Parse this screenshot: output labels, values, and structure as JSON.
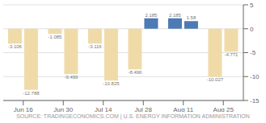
{
  "chart_data": {
    "type": "bar",
    "categories": [
      "Jun 16",
      "Jun 30",
      "Jul 14",
      "Jul 28",
      "Aug 11",
      "Aug 25"
    ],
    "series": [
      {
        "values": [
          -3.106,
          -1.085,
          -3.116,
          -8.496,
          2.185,
          -10.027
        ],
        "colors": [
          "#f0dba8",
          "#f0dba8",
          "#f0dba8",
          "#f0dba8",
          "#4d7ab5",
          "#f0dba8"
        ]
      },
      {
        "values": [
          -12.788,
          -9.499,
          -10.825,
          2.185,
          1.58,
          -4.771
        ],
        "colors": [
          "#f0dba8",
          "#f0dba8",
          "#f0dba8",
          "#4d7ab5",
          "#4d7ab5",
          "#f0dba8"
        ]
      }
    ],
    "ylim": [
      -15,
      5
    ],
    "yticks": [
      5,
      0,
      -5,
      -10,
      -15
    ],
    "grid": true,
    "data_labels": true,
    "annotations": [
      "SOURCE: TRADINGECONOMICS.COM | U.S. ENERGY INFORMATION ADMINISTRATION"
    ]
  }
}
